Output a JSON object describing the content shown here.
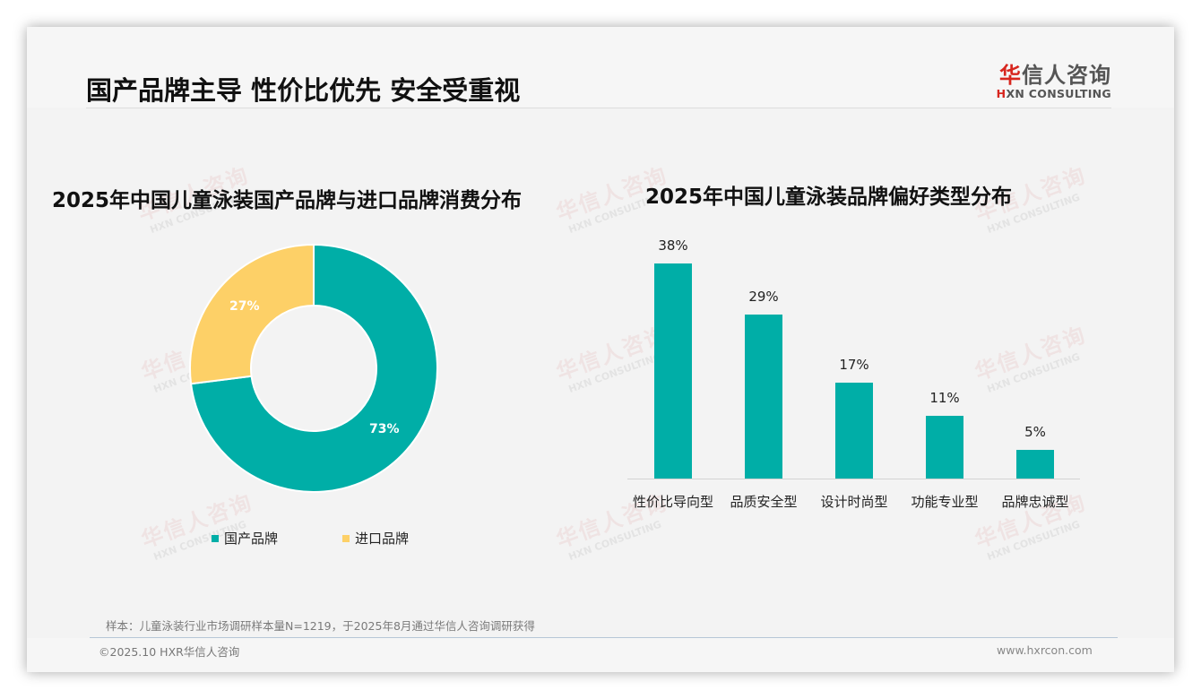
{
  "header": {
    "title": "国产品牌主导 性价比优先 安全受重视",
    "logo_cn_first": "华",
    "logo_cn_rest": "信人咨询",
    "logo_en_first": "H",
    "logo_en_rest": "XN CONSULTING"
  },
  "watermark": {
    "cn": "华信人咨询",
    "en": "HXN CONSULTING"
  },
  "colors": {
    "teal": "#00AEA7",
    "yellow": "#FDD067",
    "logo_red": "#D7261E"
  },
  "donut": {
    "title": "2025年中国儿童泳装国产品牌与进口品牌消费分布",
    "segments": [
      {
        "label": "国产品牌",
        "value": 73,
        "display": "73%",
        "color": "#00AEA7"
      },
      {
        "label": "进口品牌",
        "value": 27,
        "display": "27%",
        "color": "#FDD067"
      }
    ]
  },
  "bars": {
    "title": "2025年中国儿童泳装品牌偏好类型分布",
    "items": [
      {
        "label": "性价比导向型",
        "value": 38,
        "display": "38%"
      },
      {
        "label": "品质安全型",
        "value": 29,
        "display": "29%"
      },
      {
        "label": "设计时尚型",
        "value": 17,
        "display": "17%"
      },
      {
        "label": "功能专业型",
        "value": 11,
        "display": "11%"
      },
      {
        "label": "品牌忠诚型",
        "value": 5,
        "display": "5%"
      }
    ]
  },
  "chart_data": [
    {
      "type": "pie",
      "title": "2025年中国儿童泳装国产品牌与进口品牌消费分布",
      "categories": [
        "国产品牌",
        "进口品牌"
      ],
      "values": [
        73,
        27
      ],
      "unit": "%",
      "donut": true,
      "legend_position": "bottom"
    },
    {
      "type": "bar",
      "title": "2025年中国儿童泳装品牌偏好类型分布",
      "categories": [
        "性价比导向型",
        "品质安全型",
        "设计时尚型",
        "功能专业型",
        "品牌忠诚型"
      ],
      "values": [
        38,
        29,
        17,
        11,
        5
      ],
      "unit": "%",
      "xlabel": "",
      "ylabel": "",
      "ylim": [
        0,
        40
      ],
      "grid": false,
      "data_labels": true
    }
  ],
  "footer": {
    "note": "样本：儿童泳装行业市场调研样本量N=1219，于2025年8月通过华信人咨询调研获得",
    "copyright": "©2025.10 HXR华信人咨询",
    "website": "www.hxrcon.com"
  }
}
